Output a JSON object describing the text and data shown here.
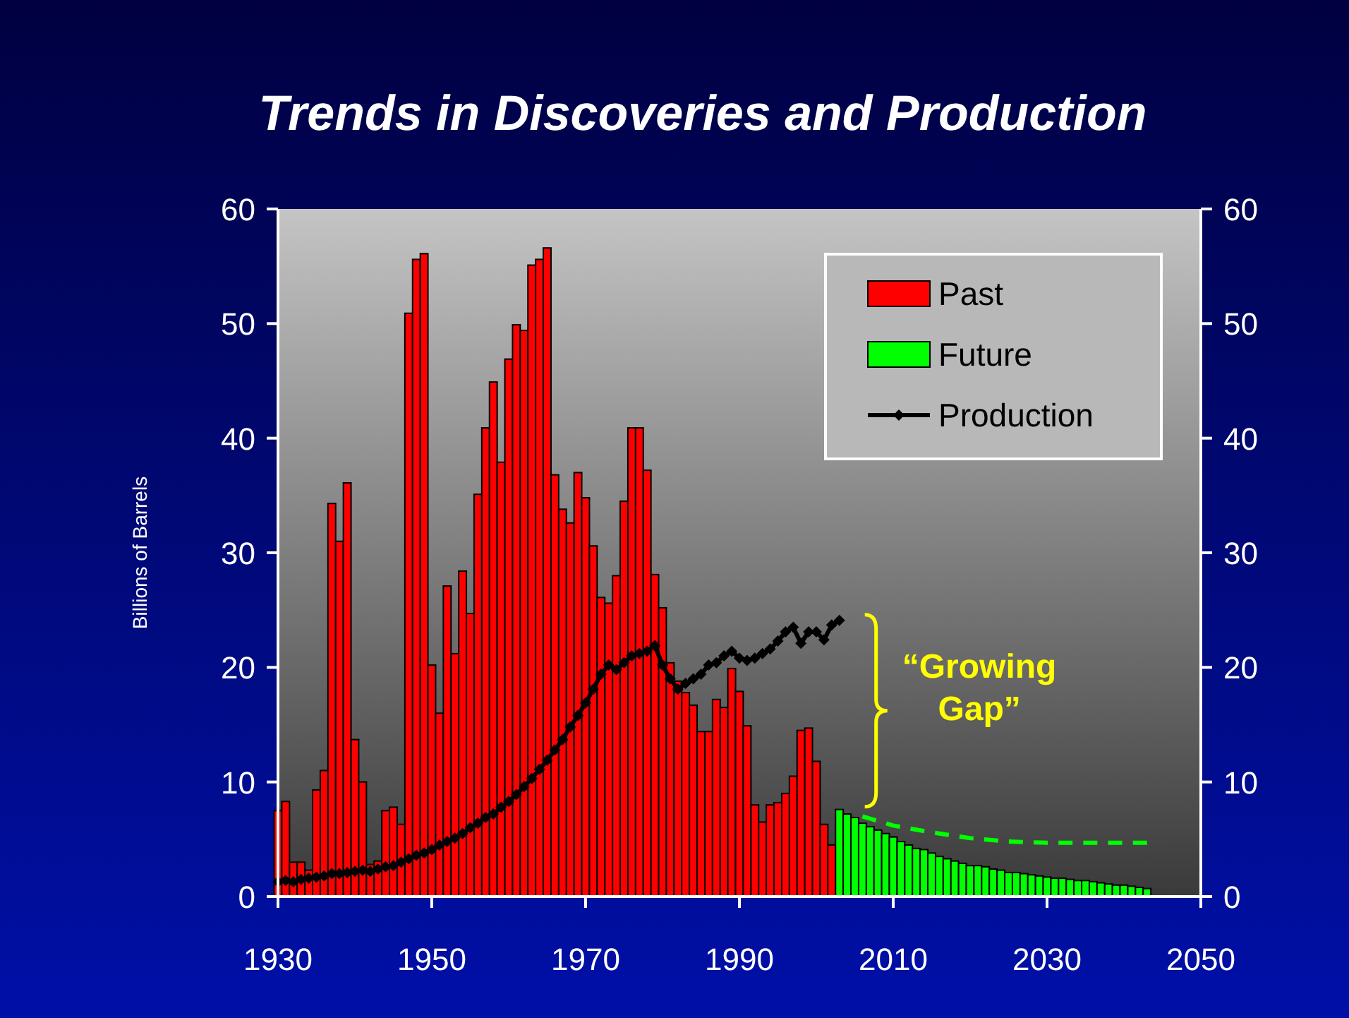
{
  "chart_data": {
    "type": "bar",
    "title": "Trends in Discoveries and Production",
    "ylabel": "Billions of Barrels",
    "xlim": [
      1930,
      2050
    ],
    "xticks": [
      1930,
      1950,
      1970,
      1990,
      2010,
      2030,
      2050
    ],
    "ylim": [
      0,
      60
    ],
    "yticks": [
      0,
      10,
      20,
      30,
      40,
      50,
      60
    ],
    "y2lim": [
      0,
      60
    ],
    "y2ticks": [
      0,
      10,
      20,
      30,
      40,
      50,
      60
    ],
    "legend": "top right",
    "grid": false,
    "annotations": [
      "“Growing Gap”"
    ],
    "series": [
      {
        "name": "Past",
        "color": "#ff0000",
        "x": [
          1930,
          1931,
          1932,
          1933,
          1934,
          1935,
          1936,
          1937,
          1938,
          1939,
          1940,
          1941,
          1942,
          1943,
          1944,
          1945,
          1946,
          1947,
          1948,
          1949,
          1950,
          1951,
          1952,
          1953,
          1954,
          1955,
          1956,
          1957,
          1958,
          1959,
          1960,
          1961,
          1962,
          1963,
          1964,
          1965,
          1966,
          1967,
          1968,
          1969,
          1970,
          1971,
          1972,
          1973,
          1974,
          1975,
          1976,
          1977,
          1978,
          1979,
          1980,
          1981,
          1982,
          1983,
          1984,
          1985,
          1986,
          1987,
          1988,
          1989,
          1990,
          1991,
          1992,
          1993,
          1994,
          1995,
          1996,
          1997,
          1998,
          1999,
          2000,
          2001,
          2002
        ],
        "values": [
          7.5,
          8.3,
          3.0,
          3.0,
          2.3,
          9.3,
          11.0,
          34.3,
          31.0,
          36.1,
          13.7,
          10.0,
          2.8,
          3.1,
          7.5,
          7.8,
          6.3,
          50.9,
          55.6,
          56.1,
          20.2,
          16.0,
          27.1,
          21.2,
          28.4,
          24.7,
          35.1,
          40.9,
          44.9,
          37.9,
          46.9,
          49.9,
          49.4,
          55.1,
          55.6,
          56.6,
          36.8,
          33.8,
          32.6,
          37.0,
          34.8,
          30.6,
          26.1,
          25.6,
          28.0,
          34.5,
          40.9,
          40.9,
          37.2,
          28.1,
          25.2,
          20.4,
          18.8,
          17.8,
          16.7,
          14.4,
          14.4,
          17.2,
          16.5,
          19.9,
          17.9,
          14.9,
          8.0,
          6.5,
          8.0,
          8.2,
          9.0,
          10.5,
          14.5,
          14.7,
          11.8,
          6.3,
          4.5
        ]
      },
      {
        "name": "Future",
        "color": "#00ff00",
        "x": [
          2003,
          2004,
          2005,
          2006,
          2007,
          2008,
          2009,
          2010,
          2011,
          2012,
          2013,
          2014,
          2015,
          2016,
          2017,
          2018,
          2019,
          2020,
          2021,
          2022,
          2023,
          2024,
          2025,
          2026,
          2027,
          2028,
          2029,
          2030,
          2031,
          2032,
          2033,
          2034,
          2035,
          2036,
          2037,
          2038,
          2039,
          2040,
          2041,
          2042,
          2043
        ],
        "values": [
          7.6,
          7.2,
          6.9,
          6.4,
          6.1,
          5.8,
          5.5,
          5.2,
          4.8,
          4.5,
          4.2,
          4.1,
          3.8,
          3.5,
          3.3,
          3.1,
          2.9,
          2.7,
          2.7,
          2.6,
          2.4,
          2.3,
          2.1,
          2.1,
          2.0,
          1.9,
          1.8,
          1.7,
          1.6,
          1.6,
          1.5,
          1.4,
          1.4,
          1.3,
          1.2,
          1.1,
          1.0,
          1.0,
          0.9,
          0.8,
          0.7
        ]
      },
      {
        "name": "Production",
        "type": "line",
        "color": "#000000",
        "marker": "diamond",
        "line_style": "solid",
        "x": [
          1930,
          1931,
          1932,
          1933,
          1934,
          1935,
          1936,
          1937,
          1938,
          1939,
          1940,
          1941,
          1942,
          1943,
          1944,
          1945,
          1946,
          1947,
          1948,
          1949,
          1950,
          1951,
          1952,
          1953,
          1954,
          1955,
          1956,
          1957,
          1958,
          1959,
          1960,
          1961,
          1962,
          1963,
          1964,
          1965,
          1966,
          1967,
          1968,
          1969,
          1970,
          1971,
          1972,
          1973,
          1974,
          1975,
          1976,
          1977,
          1978,
          1979,
          1980,
          1981,
          1982,
          1983,
          1984,
          1985,
          1986,
          1987,
          1988,
          1989,
          1990,
          1991,
          1992,
          1993,
          1994,
          1995,
          1996,
          1997,
          1998,
          1999,
          2000,
          2001,
          2002,
          2003
        ],
        "values": [
          1.3,
          1.4,
          1.3,
          1.5,
          1.6,
          1.7,
          1.8,
          2.0,
          2.0,
          2.1,
          2.2,
          2.3,
          2.2,
          2.4,
          2.6,
          2.7,
          3.0,
          3.3,
          3.6,
          3.8,
          4.1,
          4.5,
          4.8,
          5.1,
          5.5,
          6.0,
          6.4,
          6.9,
          7.2,
          7.8,
          8.3,
          8.9,
          9.6,
          10.3,
          11.1,
          11.9,
          12.8,
          13.7,
          14.8,
          15.8,
          16.9,
          18.1,
          19.4,
          20.2,
          19.8,
          20.4,
          21.0,
          21.2,
          21.4,
          21.9,
          20.2,
          19.0,
          18.1,
          18.6,
          19.0,
          19.4,
          20.2,
          20.4,
          21.0,
          21.4,
          20.8,
          20.6,
          20.8,
          21.2,
          21.6,
          22.3,
          23.1,
          23.5,
          22.1,
          23.1,
          23.1,
          22.4,
          23.7,
          24.1
        ]
      },
      {
        "type": "line",
        "color": "#00ff00",
        "marker": "none",
        "line_style": "dashed",
        "x": [
          2006,
          2010,
          2015,
          2020,
          2025,
          2030,
          2043
        ],
        "values": [
          7.0,
          6.2,
          5.6,
          5.1,
          4.8,
          4.7,
          4.7
        ]
      }
    ]
  }
}
